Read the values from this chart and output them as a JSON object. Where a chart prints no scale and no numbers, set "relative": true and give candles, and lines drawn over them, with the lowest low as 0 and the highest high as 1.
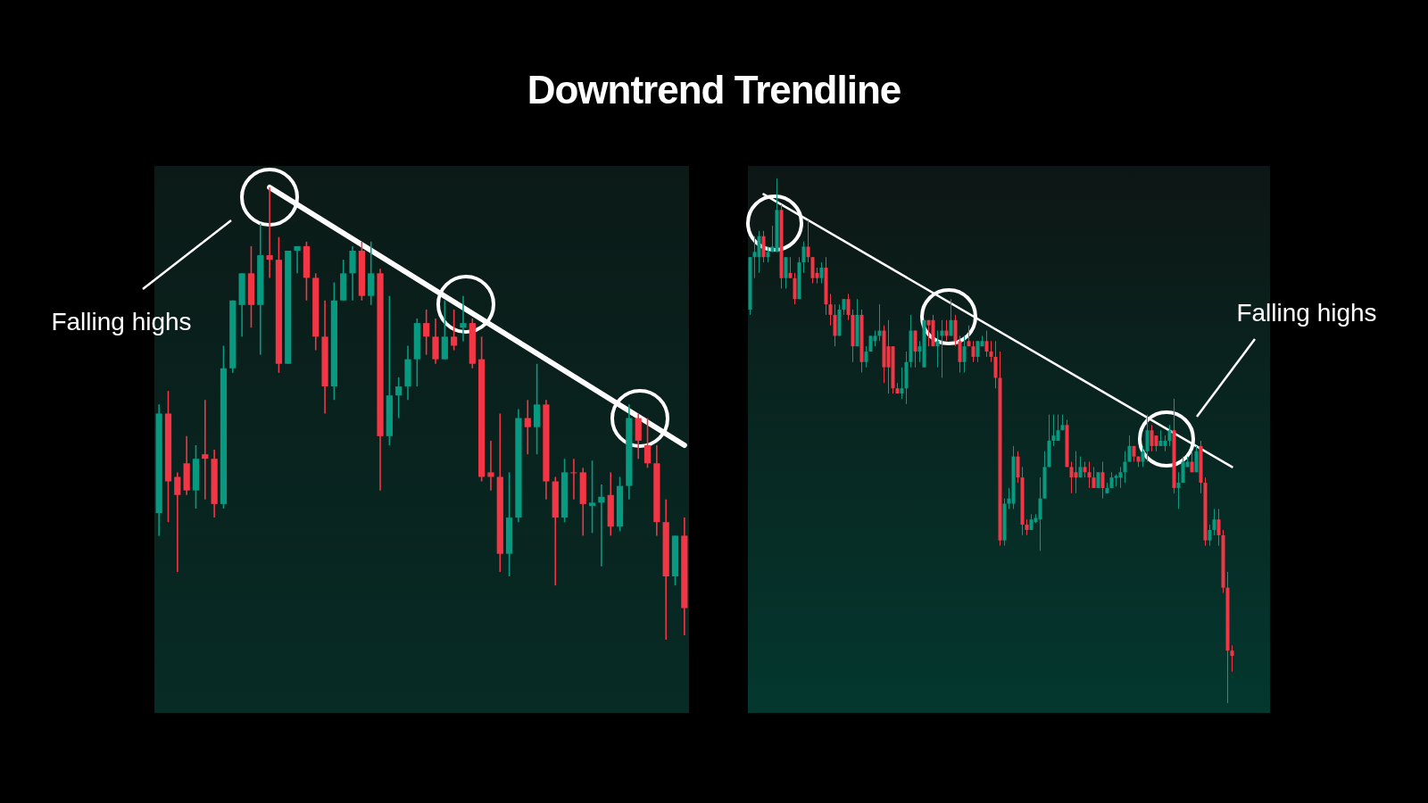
{
  "chart_data": [
    {
      "type": "candlestick",
      "title": "Downtrend Trendline",
      "relative": true,
      "annotations": [
        "Falling highs"
      ],
      "categories": [
        null,
        null,
        null,
        null,
        null,
        null,
        null,
        null,
        null,
        null,
        null,
        null,
        null,
        null,
        null,
        null,
        null,
        null,
        null,
        null,
        null,
        null,
        null,
        null,
        null,
        null,
        null,
        null,
        null,
        null,
        null,
        null,
        null,
        null,
        null,
        null,
        null,
        null,
        null,
        null,
        null,
        null,
        null,
        null,
        null,
        null,
        null,
        null,
        null,
        null,
        null,
        null,
        null,
        null,
        null,
        null,
        null,
        null
      ],
      "ohlc": [
        [
          0.28,
          0.52,
          0.23,
          0.5
        ],
        [
          0.5,
          0.55,
          0.26,
          0.35
        ],
        [
          0.36,
          0.37,
          0.15,
          0.32
        ],
        [
          0.39,
          0.45,
          0.32,
          0.33
        ],
        [
          0.33,
          0.43,
          0.29,
          0.4
        ],
        [
          0.41,
          0.53,
          0.31,
          0.4
        ],
        [
          0.4,
          0.42,
          0.27,
          0.3
        ],
        [
          0.3,
          0.65,
          0.29,
          0.6
        ],
        [
          0.6,
          0.75,
          0.59,
          0.75
        ],
        [
          0.74,
          0.81,
          0.67,
          0.81
        ],
        [
          0.81,
          0.87,
          0.69,
          0.74
        ],
        [
          0.74,
          0.92,
          0.63,
          0.85
        ],
        [
          0.85,
          1.0,
          0.8,
          0.84
        ],
        [
          0.84,
          0.89,
          0.59,
          0.61
        ],
        [
          0.61,
          0.86,
          0.61,
          0.86
        ],
        [
          0.86,
          0.87,
          0.81,
          0.87
        ],
        [
          0.87,
          0.88,
          0.75,
          0.8
        ],
        [
          0.8,
          0.81,
          0.64,
          0.67
        ],
        [
          0.67,
          0.75,
          0.5,
          0.56
        ],
        [
          0.56,
          0.79,
          0.53,
          0.75
        ],
        [
          0.75,
          0.84,
          0.75,
          0.81
        ],
        [
          0.81,
          0.87,
          0.75,
          0.86
        ],
        [
          0.86,
          0.88,
          0.75,
          0.76
        ],
        [
          0.76,
          0.88,
          0.74,
          0.81
        ],
        [
          0.81,
          0.82,
          0.33,
          0.45
        ],
        [
          0.45,
          0.76,
          0.43,
          0.54
        ],
        [
          0.54,
          0.58,
          0.49,
          0.56
        ],
        [
          0.56,
          0.65,
          0.53,
          0.62
        ],
        [
          0.62,
          0.71,
          0.56,
          0.7
        ],
        [
          0.7,
          0.73,
          0.63,
          0.67
        ],
        [
          0.67,
          0.71,
          0.61,
          0.62
        ],
        [
          0.62,
          0.75,
          0.62,
          0.67
        ],
        [
          0.67,
          0.73,
          0.64,
          0.65
        ],
        [
          0.69,
          0.76,
          0.66,
          0.7
        ],
        [
          0.7,
          0.71,
          0.6,
          0.61
        ],
        [
          0.62,
          0.67,
          0.35,
          0.36
        ],
        [
          0.37,
          0.44,
          0.33,
          0.36
        ],
        [
          0.36,
          0.5,
          0.15,
          0.19
        ],
        [
          0.19,
          0.37,
          0.14,
          0.27
        ],
        [
          0.27,
          0.51,
          0.26,
          0.49
        ],
        [
          0.49,
          0.53,
          0.41,
          0.47
        ],
        [
          0.47,
          0.61,
          0.41,
          0.52
        ],
        [
          0.52,
          0.53,
          0.31,
          0.35
        ],
        [
          0.35,
          0.36,
          0.12,
          0.27
        ],
        [
          0.27,
          0.4,
          0.26,
          0.37
        ],
        [
          0.37,
          0.4,
          0.31,
          0.37
        ],
        [
          0.37,
          0.38,
          0.23,
          0.3
        ],
        [
          0.296,
          0.396,
          0.236,
          0.303
        ],
        [
          0.303,
          0.343,
          0.162,
          0.316
        ],
        [
          0.32,
          0.37,
          0.23,
          0.25
        ],
        [
          0.25,
          0.36,
          0.24,
          0.34
        ],
        [
          0.34,
          0.52,
          0.31,
          0.49
        ],
        [
          0.49,
          0.5,
          0.4,
          0.44
        ],
        [
          0.43,
          0.49,
          0.38,
          0.39
        ],
        [
          0.39,
          0.43,
          0.23,
          0.26
        ],
        [
          0.26,
          0.31,
          0.0,
          0.14
        ],
        [
          0.14,
          0.23,
          0.12,
          0.23
        ],
        [
          0.23,
          0.27,
          0.01,
          0.07
        ]
      ],
      "series": [
        {
          "type": "line",
          "values": [
            null,
            null,
            null,
            null,
            null,
            null,
            null,
            null,
            null,
            null,
            null,
            null,
            1.0,
            null,
            null,
            null,
            null,
            null,
            null,
            null,
            null,
            null,
            null,
            null,
            null,
            null,
            null,
            null,
            null,
            null,
            null,
            null,
            null,
            null,
            null,
            null,
            null,
            null,
            null,
            null,
            null,
            null,
            null,
            null,
            null,
            null,
            null,
            null,
            null,
            null,
            null,
            null,
            null,
            null,
            null,
            null,
            null,
            0.43
          ],
          "color": "#ffffff"
        }
      ]
    },
    {
      "type": "candlestick",
      "relative": true,
      "annotations": [
        "Falling highs"
      ],
      "categories": [
        null,
        null,
        null,
        null,
        null,
        null,
        null,
        null,
        null,
        null,
        null,
        null,
        null,
        null,
        null,
        null,
        null,
        null,
        null,
        null,
        null,
        null,
        null,
        null,
        null,
        null,
        null,
        null,
        null,
        null,
        null,
        null,
        null,
        null,
        null,
        null,
        null,
        null,
        null,
        null,
        null,
        null,
        null,
        null,
        null,
        null,
        null,
        null,
        null,
        null,
        null,
        null,
        null,
        null,
        null,
        null,
        null,
        null,
        null,
        null,
        null,
        null,
        null,
        null,
        null,
        null,
        null,
        null,
        null,
        null,
        null,
        null,
        null,
        null,
        null,
        null,
        null,
        null,
        null,
        null,
        null,
        null,
        null,
        null,
        null,
        null,
        null,
        null,
        null,
        null,
        null,
        null,
        null,
        null,
        null,
        null,
        null,
        null,
        null,
        null,
        null,
        null,
        null,
        null,
        null,
        null,
        null,
        null,
        null
      ],
      "ohlc": [
        [
          0.75,
          0.85,
          0.74,
          0.85
        ],
        [
          0.85,
          0.89,
          0.81,
          0.86
        ],
        [
          0.85,
          0.9,
          0.82,
          0.89
        ],
        [
          0.89,
          0.9,
          0.84,
          0.85
        ],
        [
          0.85,
          0.87,
          0.84,
          0.86
        ],
        [
          0.86,
          0.91,
          0.86,
          0.87
        ],
        [
          0.86,
          1.0,
          0.86,
          0.94
        ],
        [
          0.94,
          0.95,
          0.79,
          0.81
        ],
        [
          0.81,
          0.85,
          0.79,
          0.85
        ],
        [
          0.82,
          0.85,
          0.81,
          0.81
        ],
        [
          0.81,
          0.82,
          0.76,
          0.77
        ],
        [
          0.77,
          0.85,
          0.77,
          0.84
        ],
        [
          0.84,
          0.88,
          0.82,
          0.87
        ],
        [
          0.87,
          0.92,
          0.84,
          0.85
        ],
        [
          0.85,
          0.85,
          0.8,
          0.81
        ],
        [
          0.82,
          0.83,
          0.8,
          0.81
        ],
        [
          0.81,
          0.84,
          0.8,
          0.83
        ],
        [
          0.83,
          0.85,
          0.74,
          0.76
        ],
        [
          0.76,
          0.78,
          0.72,
          0.74
        ],
        [
          0.74,
          0.76,
          0.68,
          0.7
        ],
        [
          0.7,
          0.76,
          0.7,
          0.75
        ],
        [
          0.75,
          0.77,
          0.74,
          0.77
        ],
        [
          0.77,
          0.78,
          0.73,
          0.74
        ],
        [
          0.74,
          0.75,
          0.65,
          0.68
        ],
        [
          0.68,
          0.77,
          0.68,
          0.74
        ],
        [
          0.74,
          0.75,
          0.63,
          0.65
        ],
        [
          0.65,
          0.68,
          0.64,
          0.67
        ],
        [
          0.67,
          0.7,
          0.67,
          0.7
        ],
        [
          0.69,
          0.71,
          0.68,
          0.7
        ],
        [
          0.7,
          0.76,
          0.69,
          0.71
        ],
        [
          0.71,
          0.72,
          0.61,
          0.64
        ],
        [
          0.68,
          0.73,
          0.59,
          0.64
        ],
        [
          0.68,
          0.68,
          0.59,
          0.6
        ],
        [
          0.6,
          0.61,
          0.59,
          0.59
        ],
        [
          0.59,
          0.64,
          0.58,
          0.6
        ],
        [
          0.6,
          0.67,
          0.57,
          0.65
        ],
        [
          0.65,
          0.74,
          0.64,
          0.71
        ],
        [
          0.71,
          0.71,
          0.64,
          0.67
        ],
        [
          0.67,
          0.69,
          0.65,
          0.68
        ],
        [
          0.64,
          0.73,
          0.64,
          0.73
        ],
        [
          0.73,
          0.73,
          0.68,
          0.72
        ],
        [
          0.73,
          0.74,
          0.68,
          0.68
        ],
        [
          0.68,
          0.71,
          0.64,
          0.69
        ],
        [
          0.7,
          0.73,
          0.62,
          0.71
        ],
        [
          0.71,
          0.73,
          0.69,
          0.7
        ],
        [
          0.7,
          0.77,
          0.7,
          0.73
        ],
        [
          0.73,
          0.74,
          0.68,
          0.69
        ],
        [
          0.69,
          0.7,
          0.63,
          0.65
        ],
        [
          0.65,
          0.7,
          0.63,
          0.68
        ],
        [
          0.69,
          0.72,
          0.68,
          0.68
        ],
        [
          0.68,
          0.69,
          0.65,
          0.66
        ],
        [
          0.66,
          0.69,
          0.65,
          0.69
        ],
        [
          0.68,
          0.7,
          0.68,
          0.69
        ],
        [
          0.69,
          0.71,
          0.66,
          0.67
        ],
        [
          0.67,
          0.69,
          0.65,
          0.66
        ],
        [
          0.66,
          0.69,
          0.6,
          0.62
        ],
        [
          0.62,
          0.67,
          0.3,
          0.31
        ],
        [
          0.31,
          0.39,
          0.3,
          0.38
        ],
        [
          0.38,
          0.41,
          0.37,
          0.39
        ],
        [
          0.38,
          0.49,
          0.37,
          0.47
        ],
        [
          0.47,
          0.48,
          0.42,
          0.43
        ],
        [
          0.43,
          0.45,
          0.32,
          0.34
        ],
        [
          0.34,
          0.35,
          0.32,
          0.33
        ],
        [
          0.33,
          0.36,
          0.33,
          0.35
        ],
        [
          0.345,
          0.36,
          0.343,
          0.353
        ],
        [
          0.35,
          0.43,
          0.29,
          0.39
        ],
        [
          0.39,
          0.48,
          0.39,
          0.45
        ],
        [
          0.45,
          0.55,
          0.45,
          0.5
        ],
        [
          0.5,
          0.55,
          0.49,
          0.51
        ],
        [
          0.5,
          0.55,
          0.5,
          0.52
        ],
        [
          0.52,
          0.55,
          0.52,
          0.53
        ],
        [
          0.53,
          0.54,
          0.45,
          0.45
        ],
        [
          0.45,
          0.46,
          0.4,
          0.43
        ],
        [
          0.44,
          0.48,
          0.4,
          0.43
        ],
        [
          0.43,
          0.47,
          0.43,
          0.45
        ],
        [
          0.45,
          0.46,
          0.43,
          0.44
        ],
        [
          0.44,
          0.46,
          0.41,
          0.43
        ],
        [
          0.43,
          0.45,
          0.41,
          0.41
        ],
        [
          0.41,
          0.44,
          0.41,
          0.44
        ],
        [
          0.44,
          0.46,
          0.39,
          0.41
        ],
        [
          0.4,
          0.42,
          0.4,
          0.41
        ],
        [
          0.41,
          0.44,
          0.41,
          0.43
        ],
        [
          0.429,
          0.436,
          0.413,
          0.433
        ],
        [
          0.43,
          0.45,
          0.41,
          0.44
        ],
        [
          0.44,
          0.48,
          0.42,
          0.46
        ],
        [
          0.46,
          0.51,
          0.46,
          0.49
        ],
        [
          0.49,
          0.49,
          0.46,
          0.47
        ],
        [
          0.47,
          0.47,
          0.45,
          0.46
        ],
        [
          0.46,
          0.49,
          0.45,
          0.48
        ],
        [
          0.48,
          0.55,
          0.46,
          0.52
        ],
        [
          0.52,
          0.53,
          0.48,
          0.49
        ],
        [
          0.51,
          0.51,
          0.48,
          0.49
        ],
        [
          0.49,
          0.52,
          0.49,
          0.5
        ],
        [
          0.49,
          0.51,
          0.48,
          0.5
        ],
        [
          0.5,
          0.53,
          0.49,
          0.52
        ],
        [
          0.52,
          0.58,
          0.4,
          0.41
        ],
        [
          0.41,
          0.44,
          0.37,
          0.42
        ],
        [
          0.42,
          0.47,
          0.42,
          0.46
        ],
        [
          0.45,
          0.47,
          0.45,
          0.46
        ],
        [
          0.46,
          0.48,
          0.44,
          0.44
        ],
        [
          0.44,
          0.49,
          0.44,
          0.48
        ],
        [
          0.49,
          0.5,
          0.4,
          0.42
        ],
        [
          0.42,
          0.43,
          0.3,
          0.31
        ],
        [
          0.31,
          0.34,
          0.3,
          0.33
        ],
        [
          0.33,
          0.37,
          0.32,
          0.35
        ],
        [
          0.35,
          0.37,
          0.3,
          0.32
        ],
        [
          0.32,
          0.33,
          0.21,
          0.22
        ],
        [
          0.22,
          0.25,
          0.0,
          0.1
        ],
        [
          0.1,
          0.11,
          0.06,
          0.09
        ]
      ],
      "series": [
        {
          "type": "line",
          "values": [
            null,
            null,
            null,
            0.97,
            null,
            null,
            null,
            null,
            null,
            null,
            null,
            null,
            null,
            null,
            null,
            null,
            null,
            null,
            null,
            null,
            null,
            null,
            null,
            null,
            null,
            null,
            null,
            null,
            null,
            null,
            null,
            null,
            null,
            null,
            null,
            null,
            null,
            null,
            null,
            null,
            null,
            null,
            null,
            null,
            null,
            null,
            null,
            null,
            null,
            null,
            null,
            null,
            null,
            null,
            null,
            null,
            null,
            null,
            null,
            null,
            null,
            null,
            null,
            null,
            null,
            null,
            null,
            null,
            null,
            null,
            null,
            null,
            null,
            null,
            null,
            null,
            null,
            null,
            null,
            null,
            null,
            null,
            null,
            null,
            null,
            null,
            null,
            null,
            null,
            null,
            null,
            null,
            null,
            null,
            null,
            null,
            null,
            null,
            null,
            null,
            null,
            null,
            null,
            null,
            null,
            null,
            null,
            null,
            0.45
          ],
          "color": "#ffffff"
        }
      ]
    }
  ]
}
